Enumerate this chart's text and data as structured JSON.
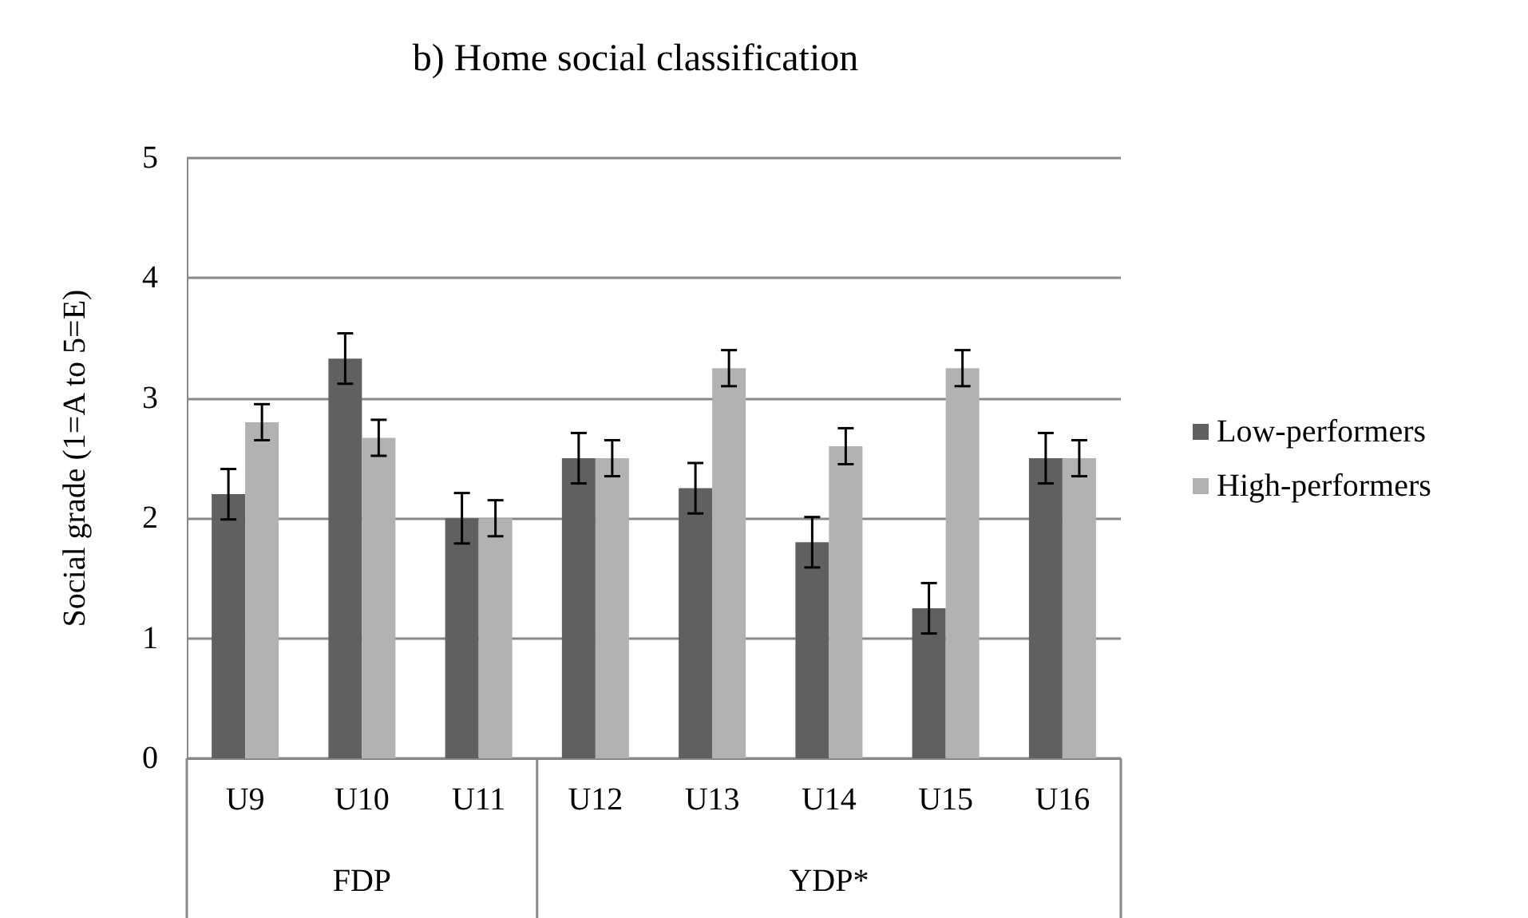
{
  "chart_data": {
    "type": "bar",
    "title": "b) Home social classification",
    "ylabel": "Social grade (1=A to 5=E)",
    "categories": [
      "U9",
      "U10",
      "U11",
      "U12",
      "U13",
      "U14",
      "U15",
      "U16"
    ],
    "series": [
      {
        "name": "Low-performers",
        "color": "#606060",
        "values": [
          2.2,
          3.33,
          2.0,
          2.5,
          2.25,
          1.8,
          1.25,
          2.5
        ],
        "errors": [
          0.21,
          0.21,
          0.21,
          0.21,
          0.21,
          0.21,
          0.21,
          0.21
        ]
      },
      {
        "name": "High-performers",
        "color": "#b2b2b2",
        "values": [
          2.8,
          2.67,
          2.0,
          2.5,
          3.25,
          2.6,
          3.25,
          2.5
        ],
        "errors": [
          0.15,
          0.15,
          0.15,
          0.15,
          0.15,
          0.15,
          0.15,
          0.15
        ]
      }
    ],
    "annotations": [
      "FDP",
      "YDP*"
    ],
    "ylim": [
      0,
      5
    ],
    "yticks": [
      0,
      1,
      2,
      3,
      4,
      5
    ],
    "grid": "y",
    "legend": "right"
  }
}
